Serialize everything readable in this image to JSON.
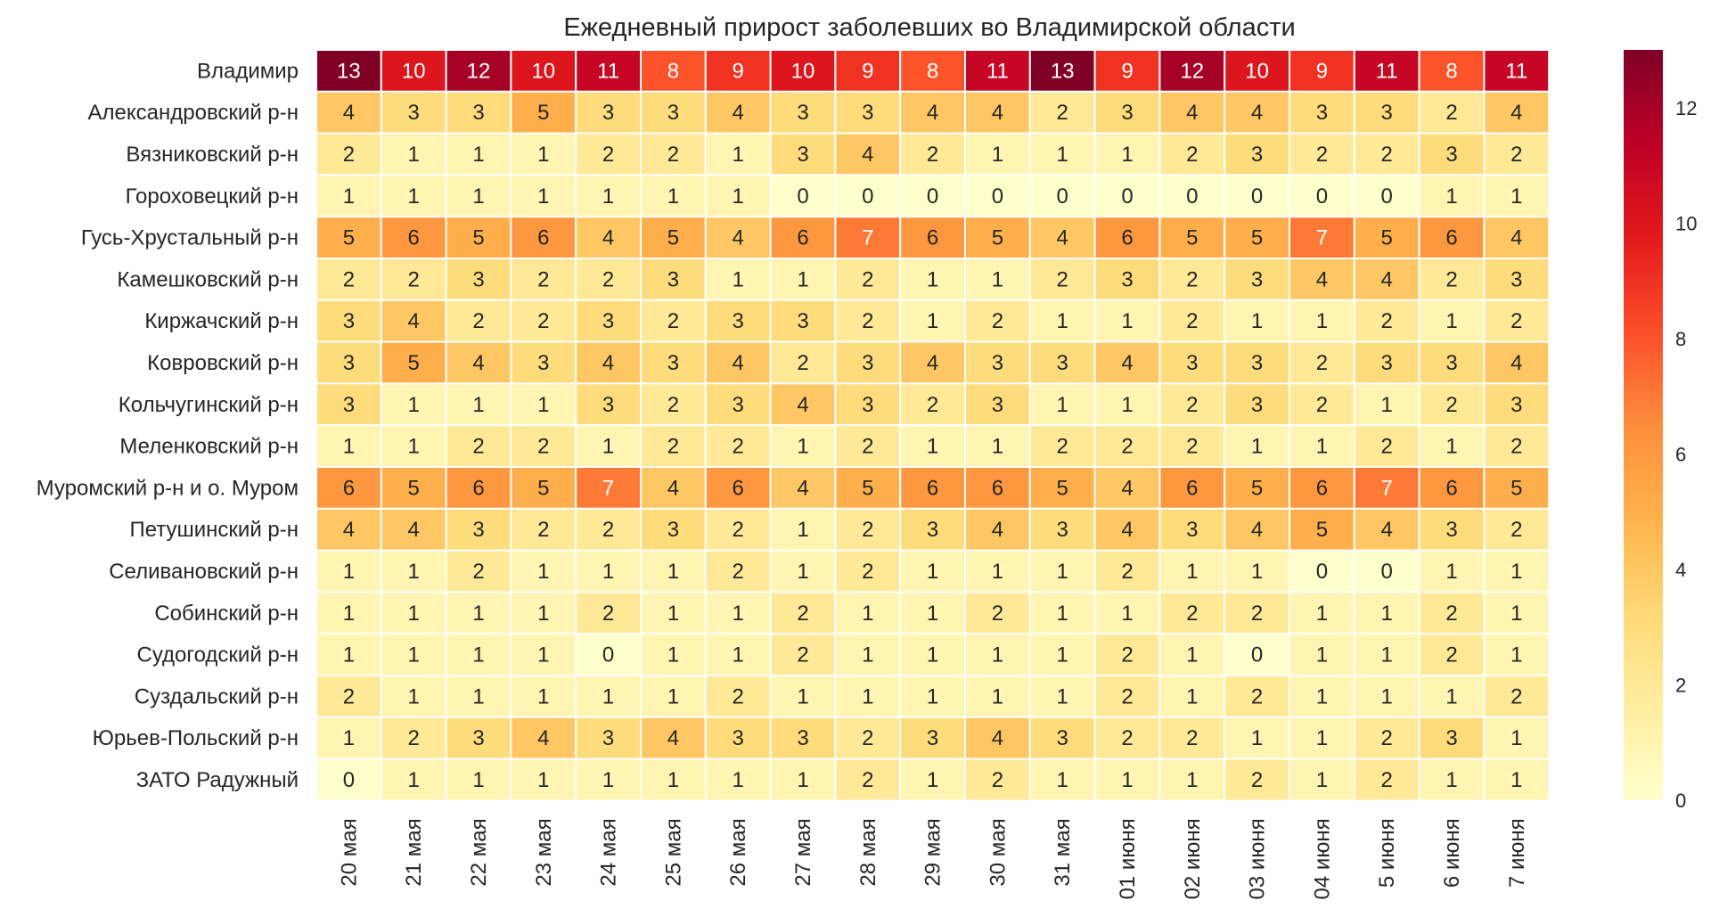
{
  "chart_data": {
    "type": "heatmap",
    "title": "Ежедневный прирост заболевших во Владимирской области",
    "xlabel": "",
    "ylabel": "",
    "columns": [
      "20 мая",
      "21 мая",
      "22 мая",
      "23 мая",
      "24 мая",
      "25 мая",
      "26 мая",
      "27 мая",
      "28 мая",
      "29 мая",
      "30 мая",
      "31 мая",
      "01 июня",
      "02 июня",
      "03 июня",
      "04 июня",
      "5 июня",
      "6 июня",
      "7 июня"
    ],
    "rows": [
      "Владимир",
      "Александровский р-н",
      "Вязниковский р-н",
      "Гороховецкий р-н",
      "Гусь-Хрустальный р-н",
      "Камешковский р-н",
      "Киржачский р-н",
      "Ковровский р-н",
      "Кольчугинский р-н",
      "Меленковский р-н",
      "Муромский р-н и о. Муром",
      "Петушинский р-н",
      "Селивановский р-н",
      "Собинский р-н",
      "Судогодский р-н",
      "Суздальский р-н",
      "Юрьев-Польский р-н",
      "ЗАТО Радужный"
    ],
    "values": [
      [
        13,
        10,
        12,
        10,
        11,
        8,
        9,
        10,
        9,
        8,
        11,
        13,
        9,
        12,
        10,
        9,
        11,
        8,
        11
      ],
      [
        4,
        3,
        3,
        5,
        3,
        3,
        4,
        3,
        3,
        4,
        4,
        2,
        3,
        4,
        4,
        3,
        3,
        2,
        4
      ],
      [
        2,
        1,
        1,
        1,
        2,
        2,
        1,
        3,
        4,
        2,
        1,
        1,
        1,
        2,
        3,
        2,
        2,
        3,
        2
      ],
      [
        1,
        1,
        1,
        1,
        1,
        1,
        1,
        0,
        0,
        0,
        0,
        0,
        0,
        0,
        0,
        0,
        0,
        1,
        1
      ],
      [
        5,
        6,
        5,
        6,
        4,
        5,
        4,
        6,
        7,
        6,
        5,
        4,
        6,
        5,
        5,
        7,
        5,
        6,
        4
      ],
      [
        2,
        2,
        3,
        2,
        2,
        3,
        1,
        1,
        2,
        1,
        1,
        2,
        3,
        2,
        3,
        4,
        4,
        2,
        3
      ],
      [
        3,
        4,
        2,
        2,
        3,
        2,
        3,
        3,
        2,
        1,
        2,
        1,
        1,
        2,
        1,
        1,
        2,
        1,
        2
      ],
      [
        3,
        5,
        4,
        3,
        4,
        3,
        4,
        2,
        3,
        4,
        3,
        3,
        4,
        3,
        3,
        2,
        3,
        3,
        4
      ],
      [
        3,
        1,
        1,
        1,
        3,
        2,
        3,
        4,
        3,
        2,
        3,
        1,
        1,
        2,
        3,
        2,
        1,
        2,
        3
      ],
      [
        1,
        1,
        2,
        2,
        1,
        2,
        2,
        1,
        2,
        1,
        1,
        2,
        2,
        2,
        1,
        1,
        2,
        1,
        2
      ],
      [
        6,
        5,
        6,
        5,
        7,
        4,
        6,
        4,
        5,
        6,
        6,
        5,
        4,
        6,
        5,
        6,
        7,
        6,
        5
      ],
      [
        4,
        4,
        3,
        2,
        2,
        3,
        2,
        1,
        2,
        3,
        4,
        3,
        4,
        3,
        4,
        5,
        4,
        3,
        2
      ],
      [
        1,
        1,
        2,
        1,
        1,
        1,
        2,
        1,
        2,
        1,
        1,
        1,
        2,
        1,
        1,
        0,
        0,
        1,
        1
      ],
      [
        1,
        1,
        1,
        1,
        2,
        1,
        1,
        2,
        1,
        1,
        2,
        1,
        1,
        2,
        2,
        1,
        1,
        2,
        1
      ],
      [
        1,
        1,
        1,
        1,
        0,
        1,
        1,
        2,
        1,
        1,
        1,
        1,
        2,
        1,
        0,
        1,
        1,
        2,
        1
      ],
      [
        2,
        1,
        1,
        1,
        1,
        1,
        2,
        1,
        1,
        1,
        1,
        1,
        2,
        1,
        2,
        1,
        1,
        1,
        2
      ],
      [
        1,
        2,
        3,
        4,
        3,
        4,
        3,
        3,
        2,
        3,
        4,
        3,
        2,
        2,
        1,
        1,
        2,
        3,
        1
      ],
      [
        0,
        1,
        1,
        1,
        1,
        1,
        1,
        1,
        2,
        1,
        2,
        1,
        1,
        1,
        2,
        1,
        2,
        1,
        1
      ]
    ],
    "vmin": 0,
    "vmax": 13,
    "colormap": "YlOrRd",
    "colorbar_ticks": [
      0,
      2,
      4,
      6,
      8,
      10,
      12
    ]
  }
}
